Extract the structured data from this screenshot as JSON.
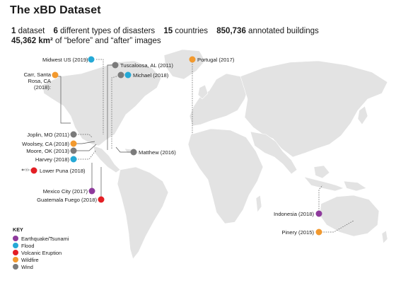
{
  "title": "The xBD Dataset",
  "stats": {
    "line1": [
      {
        "value": "1",
        "label": "dataset"
      },
      {
        "value": "6",
        "label": "different types of disasters"
      },
      {
        "value": "15",
        "label": "countries"
      },
      {
        "value": "850,736",
        "label": "annotated buildings"
      }
    ],
    "line2_value": "45,362 km²",
    "line2_label": "of “before” and “after” images"
  },
  "colors": {
    "earthquake": "#8e3a9c",
    "flood": "#25a9d6",
    "volcanic": "#e31e24",
    "wildfire": "#f2992e",
    "wind": "#7b7b7b",
    "land": "#e3e3e3"
  },
  "events": [
    {
      "id": "midwest",
      "label": "Midwest US (2019)",
      "type": "flood"
    },
    {
      "id": "tuscaloosa",
      "label": "Tuscaloosa, AL (2011)",
      "type": "wind"
    },
    {
      "id": "michael",
      "label": "Michael (2018)",
      "type": "wind"
    },
    {
      "id": "portugal",
      "label": "Portugal (2017)",
      "type": "wildfire"
    },
    {
      "id": "carr",
      "label": "Carr, Santa Rosa, CA (2018):",
      "type": "wildfire"
    },
    {
      "id": "joplin",
      "label": "Joplin, MO (2011)",
      "type": "wind"
    },
    {
      "id": "woolsey",
      "label": "Woolsey, CA (2018)",
      "type": "wildfire"
    },
    {
      "id": "moore",
      "label": "Moore, OK (2013)",
      "type": "wind"
    },
    {
      "id": "harvey",
      "label": "Harvey (2018)",
      "type": "flood"
    },
    {
      "id": "matthew",
      "label": "Matthew (2016)",
      "type": "wind"
    },
    {
      "id": "puna",
      "label": "Lower Puna (2018)",
      "type": "volcanic"
    },
    {
      "id": "mexico",
      "label": "Mexico City (2017)",
      "type": "earthquake"
    },
    {
      "id": "guatemala",
      "label": "Guatemala Fuego (2018)",
      "type": "volcanic"
    },
    {
      "id": "indonesia",
      "label": "Indonesia (2018)",
      "type": "earthquake"
    },
    {
      "id": "pinery",
      "label": "Pinery (2015)",
      "type": "wildfire"
    }
  ],
  "key": {
    "title": "KEY",
    "items": [
      {
        "label": "Earthquake/Tsunami",
        "type": "earthquake"
      },
      {
        "label": "Flood",
        "type": "flood"
      },
      {
        "label": "Volcanic Eruption",
        "type": "volcanic"
      },
      {
        "label": "Wildfire",
        "type": "wildfire"
      },
      {
        "label": "Wind",
        "type": "wind"
      }
    ]
  }
}
